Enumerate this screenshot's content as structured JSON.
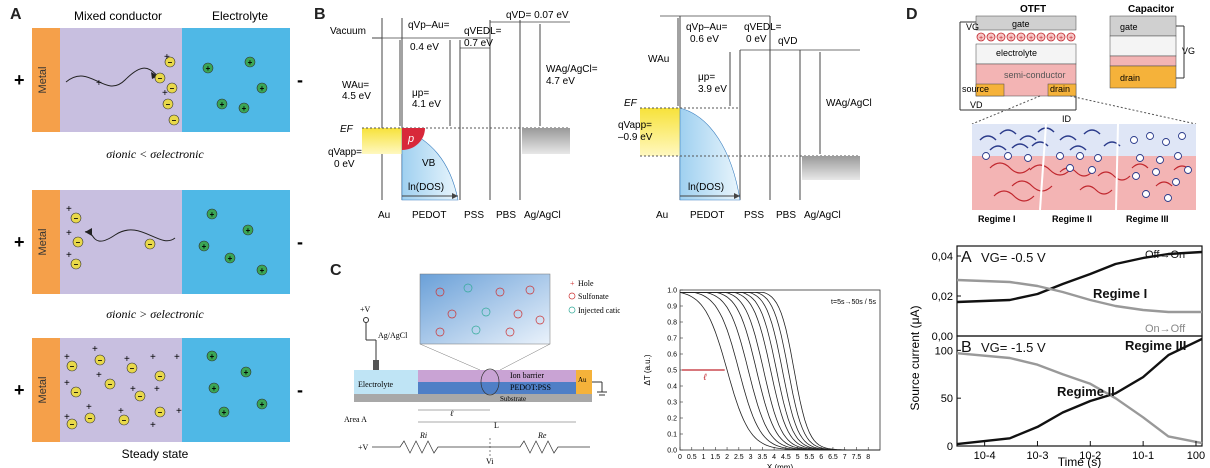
{
  "panelA": {
    "label": "A",
    "header_mixed": "Mixed conductor",
    "header_electrolyte": "Electrolyte",
    "metal": "Metal",
    "plus": "+",
    "minus": "-",
    "rel1_ionic": "σ",
    "cap1": "σionic < σelectronic",
    "cap2": "σionic > σelectronic",
    "cap3": "Steady state",
    "colors": {
      "metal": "#f5a04a",
      "mixed": "#c8bfe0",
      "electrolyte": "#4fb8e6",
      "cation": "#3aa655",
      "anion": "#e8d84a"
    }
  },
  "panelB": {
    "label": "B",
    "left": {
      "vacuum": "Vacuum",
      "qVp_Au": "qVp–Au=",
      "qVp_Au_val": "0.4 eV",
      "qVEDL": "qVEDL=",
      "qVEDL_val": "0.7 eV",
      "qVD": "qVD= 0.07 eV",
      "WAu": "WAu=",
      "WAu_val": "4.5 eV",
      "mup": "μp=",
      "mup_val": "4.1 eV",
      "WAgAgCl": "WAg/AgCl=",
      "WAgAgCl_val": "4.7 eV",
      "EF": "EF",
      "qVapp": "qVapp=",
      "qVapp_val": "0 eV",
      "p": "p",
      "VB": "VB",
      "lnDOS": "ln(DOS)",
      "layers": [
        "Au",
        "PEDOT",
        "PSS",
        "PBS",
        "Ag/AgCl"
      ]
    },
    "right": {
      "qVp_Au": "qVp–Au=",
      "qVp_Au_val": "0.6 eV",
      "qVEDL": "qVEDL=",
      "qVEDL_val": "0 eV",
      "qVD": "qVD",
      "WAu": "WAu",
      "mup": "μp=",
      "mup_val": "3.9 eV",
      "WAgAgCl": "WAg/AgCl",
      "EF": "EF",
      "qVapp": "qVapp=",
      "qVapp_val": "–0.9 eV",
      "lnDOS": "ln(DOS)",
      "layers": [
        "Au",
        "PEDOT",
        "PSS",
        "PBS",
        "Ag/AgCl"
      ]
    }
  },
  "panelC": {
    "label": "C",
    "plusV": "+V",
    "agagcl": "Ag/AgCl",
    "legend": [
      "Hole",
      "Sulfonate",
      "Injected cation"
    ],
    "electrolyte": "Electrolyte",
    "ion_barrier": "Ion barrier",
    "pedot_pss": "PEDOT:PSS",
    "substrate": "Substrate",
    "au": "Au",
    "area": "Area A",
    "ell": "ℓ",
    "L": "L",
    "Ri": "Ri",
    "Re": "Re",
    "Vi": "Vi",
    "plot": {
      "annotation": "t=5s→50s / 5s",
      "xlabel": "X (mm)",
      "ylabel": "ΔT (a.u.)",
      "ell_marker": "ℓ"
    }
  },
  "panelD": {
    "label": "D",
    "otft": "OTFT",
    "capacitor": "Capacitor",
    "VG": "VG",
    "VD": "VD",
    "ID": "ID",
    "gate": "gate",
    "electrolyte": "electrolyte",
    "semi": "semi-conductor",
    "source": "source",
    "drain": "drain",
    "regimes": [
      "Regime I",
      "Regime II",
      "Regime III"
    ],
    "plotA": {
      "label": "A",
      "title": "VG= -0.5 V",
      "offon": "Off→On",
      "onoff": "On→Off",
      "regime": "Regime I"
    },
    "plotB": {
      "label": "B",
      "title": "VG= -1.5 V",
      "regime2": "Regime II",
      "regime3": "Regime III"
    },
    "ylabel": "Source current (μA)",
    "xlabel": "Time (s)"
  },
  "chart_data": [
    {
      "type": "line",
      "title": "",
      "annotation": "t=5s→50s / 5s",
      "xlabel": "X (mm)",
      "ylabel": "ΔT (a.u.)",
      "xlim": [
        0,
        8.5
      ],
      "ylim": [
        0,
        1.0
      ],
      "x_ticks": [
        "0",
        "0.5",
        "1",
        "1.5",
        "2",
        "2.5",
        "3",
        "3.5",
        "4",
        "4.5",
        "5",
        "5.5",
        "6",
        "6.5",
        "7",
        "7.5",
        "8"
      ],
      "y_ticks": [
        "0.0",
        "0.1",
        "0.2",
        "0.3",
        "0.4",
        "0.5",
        "0.6",
        "0.7",
        "0.8",
        "0.9",
        "1.0"
      ],
      "series": [
        {
          "x50": 2.0
        },
        {
          "x50": 2.5
        },
        {
          "x50": 2.9
        },
        {
          "x50": 3.25
        },
        {
          "x50": 3.55
        },
        {
          "x50": 3.85
        },
        {
          "x50": 4.1
        },
        {
          "x50": 4.35
        },
        {
          "x50": 4.6
        },
        {
          "x50": 4.85
        }
      ]
    },
    {
      "type": "line",
      "title": "VG= -0.5 V",
      "xlabel": "Time (s)",
      "ylabel": "Source current (μA)",
      "xscale": "log",
      "xlim": [
        3e-05,
        1.3
      ],
      "ylim": [
        0,
        0.045
      ],
      "y_ticks": [
        "0,00",
        "0,02",
        "0,04"
      ],
      "series": [
        {
          "name": "Off→On",
          "x": [
            3e-05,
            0.0003,
            0.001,
            0.003,
            0.01,
            0.03,
            0.1,
            0.3,
            1.3
          ],
          "y": [
            0.017,
            0.018,
            0.021,
            0.026,
            0.031,
            0.036,
            0.039,
            0.041,
            0.042
          ]
        },
        {
          "name": "On→Off",
          "x": [
            3e-05,
            0.0003,
            0.001,
            0.003,
            0.01,
            0.03,
            0.1,
            0.3,
            1.3
          ],
          "y": [
            0.028,
            0.027,
            0.025,
            0.022,
            0.018,
            0.015,
            0.013,
            0.012,
            0.012
          ]
        }
      ]
    },
    {
      "type": "line",
      "title": "VG= -1.5 V",
      "xlabel": "Time (s)",
      "ylabel": "Source current (μA)",
      "xscale": "log",
      "xlim": [
        3e-05,
        1.3
      ],
      "ylim": [
        0,
        115
      ],
      "x_ticks": [
        "10-4",
        "10-3",
        "10-2",
        "10-1",
        "100"
      ],
      "y_ticks": [
        "0",
        "50",
        "100"
      ],
      "series": [
        {
          "name": "Off→On",
          "x": [
            3e-05,
            0.0003,
            0.001,
            0.003,
            0.01,
            0.03,
            0.1,
            0.3,
            1.3
          ],
          "y": [
            2,
            8,
            20,
            35,
            47,
            55,
            72,
            95,
            112
          ]
        },
        {
          "name": "On→Off",
          "x": [
            3e-05,
            0.0003,
            0.001,
            0.003,
            0.01,
            0.03,
            0.1,
            0.3,
            1.3
          ],
          "y": [
            97,
            92,
            85,
            75,
            65,
            50,
            30,
            10,
            3
          ]
        }
      ]
    }
  ]
}
